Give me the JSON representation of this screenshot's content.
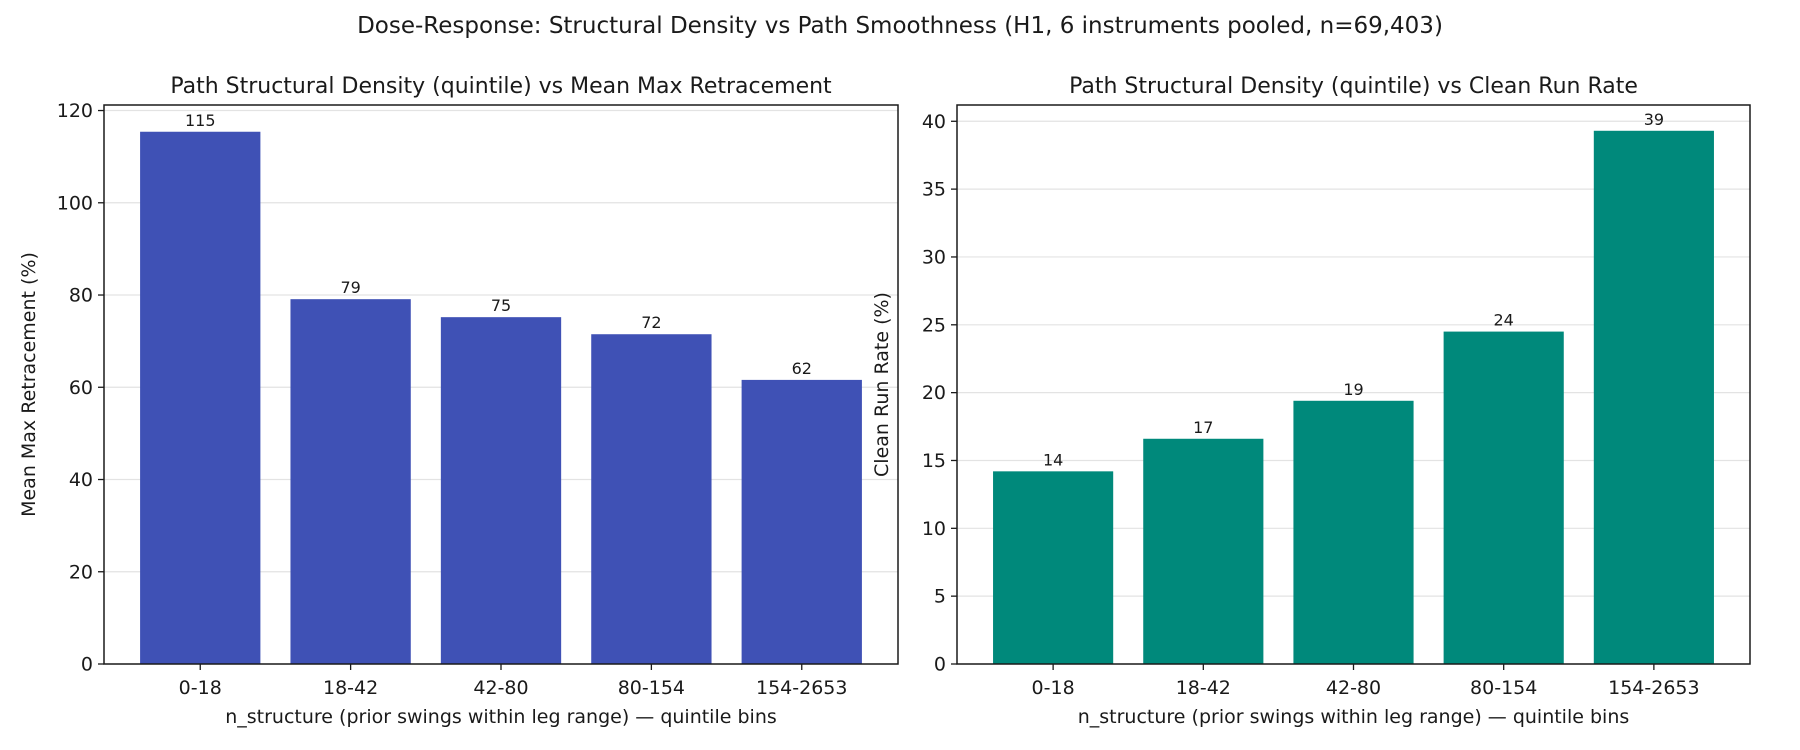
{
  "title": "Dose-Response: Structural Density vs Path Smoothness (H1, 6 instruments pooled, n=69,403)",
  "chart_data": [
    {
      "type": "bar",
      "title": "Path Structural Density (quintile) vs Mean Max Retracement",
      "xlabel": "n_structure (prior swings within leg range) — quintile bins",
      "ylabel": "Mean Max Retracement (%)",
      "categories": [
        "0-18",
        "18-42",
        "42-80",
        "80-154",
        "154-2653"
      ],
      "values": [
        115.4,
        79.1,
        75.2,
        71.5,
        61.6
      ],
      "value_labels": [
        "115",
        "79",
        "75",
        "72",
        "62"
      ],
      "ylim": [
        0,
        121.2
      ],
      "yticks": [
        0,
        20,
        40,
        60,
        80,
        100,
        120
      ],
      "color": "#3f51b5",
      "grid": "y"
    },
    {
      "type": "bar",
      "title": "Path Structural Density (quintile) vs Clean Run Rate",
      "xlabel": "n_structure (prior swings within leg range) — quintile bins",
      "ylabel": "Clean Run Rate (%)",
      "categories": [
        "0-18",
        "18-42",
        "42-80",
        "80-154",
        "154-2653"
      ],
      "values": [
        14.2,
        16.6,
        19.4,
        24.5,
        39.3
      ],
      "value_labels": [
        "14",
        "17",
        "19",
        "24",
        "39"
      ],
      "ylim": [
        0,
        41.2
      ],
      "yticks": [
        0,
        5,
        10,
        15,
        20,
        25,
        30,
        35,
        40
      ],
      "color": "#00897b",
      "grid": "y"
    }
  ]
}
